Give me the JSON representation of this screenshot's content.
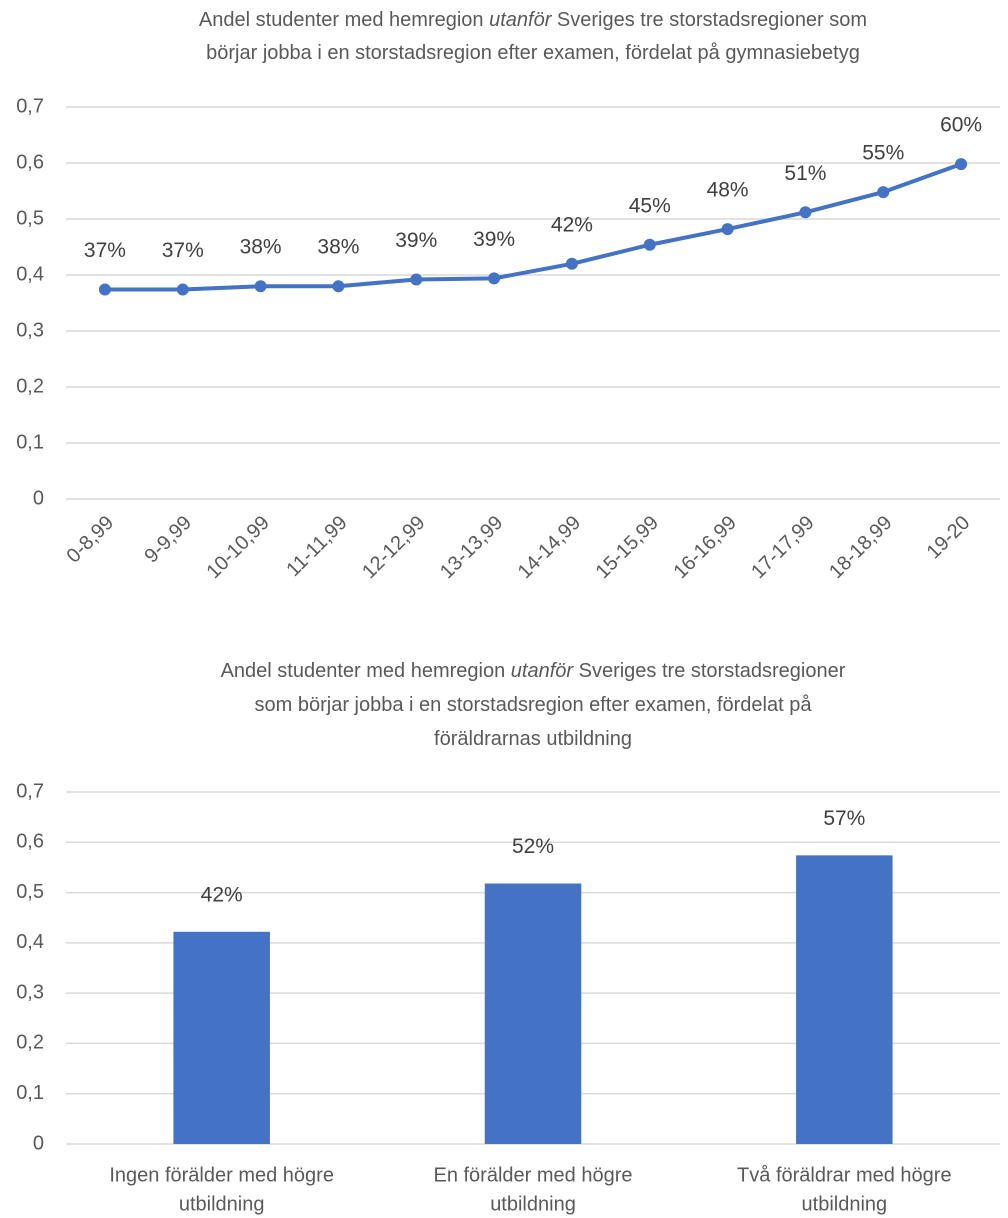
{
  "chart_data": [
    {
      "type": "line",
      "title": [
        [
          "Andel studenter med hemregion ",
          "utanför",
          " Sveriges tre storstadsregioner som"
        ],
        [
          "börjar jobba i en storstadsregion efter examen, fördelat på gymnasiebetyg"
        ]
      ],
      "categories": [
        "0-8,99",
        "9-9,99",
        "10-10,99",
        "11-11,99",
        "12-12,99",
        "13-13,99",
        "14-14,99",
        "15-15,99",
        "16-16,99",
        "17-17,99",
        "18-18,99",
        "19-20"
      ],
      "values": [
        0.374,
        0.374,
        0.38,
        0.38,
        0.392,
        0.394,
        0.42,
        0.454,
        0.482,
        0.512,
        0.548,
        0.598
      ],
      "value_labels": [
        "37%",
        "37%",
        "38%",
        "38%",
        "39%",
        "39%",
        "42%",
        "45%",
        "48%",
        "51%",
        "55%",
        "60%"
      ],
      "color": "#4472c4",
      "ylim": [
        0,
        0.7
      ],
      "yticks": [
        0,
        {
          "value": 0.1,
          "label": "0,1"
        },
        {
          "value": 0.2,
          "label": "0,2"
        },
        {
          "value": 0.3,
          "label": "0,3"
        },
        {
          "value": 0.4,
          "label": "0,4"
        },
        {
          "value": 0.5,
          "label": "0,5"
        },
        {
          "value": 0.6,
          "label": "0,6"
        },
        {
          "value": 0.7,
          "label": "0,7"
        }
      ],
      "grid": true
    },
    {
      "type": "bar",
      "title": [
        [
          "Andel studenter med hemregion ",
          "utanför",
          " Sveriges tre storstadsregioner"
        ],
        [
          "som börjar jobba i en storstadsregion efter examen, fördelat på"
        ],
        [
          "föräldrarnas utbildning"
        ]
      ],
      "categories": [
        [
          "Ingen förälder med högre",
          "utbildning"
        ],
        [
          "En förälder med högre",
          "utbildning"
        ],
        [
          "Två föräldrar med högre",
          "utbildning"
        ]
      ],
      "values": [
        0.422,
        0.518,
        0.574
      ],
      "value_labels": [
        "42%",
        "52%",
        "57%"
      ],
      "color": "#4472c4",
      "ylim": [
        0,
        0.7
      ],
      "yticks": [
        0,
        {
          "value": 0.1,
          "label": "0,1"
        },
        {
          "value": 0.2,
          "label": "0,2"
        },
        {
          "value": 0.3,
          "label": "0,3"
        },
        {
          "value": 0.4,
          "label": "0,4"
        },
        {
          "value": 0.5,
          "label": "0,5"
        },
        {
          "value": 0.6,
          "label": "0,6"
        },
        {
          "value": 0.7,
          "label": "0,7"
        }
      ],
      "grid": true
    }
  ]
}
